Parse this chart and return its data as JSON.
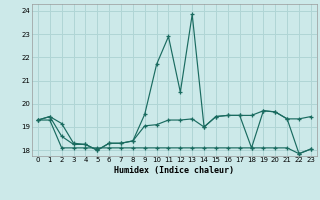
{
  "xlabel": "Humidex (Indice chaleur)",
  "background_color": "#cce9e9",
  "grid_color": "#b0d5d5",
  "line_color": "#1a6b60",
  "xlim": [
    -0.5,
    23.5
  ],
  "ylim": [
    17.75,
    24.3
  ],
  "yticks": [
    18,
    19,
    20,
    21,
    22,
    23,
    24
  ],
  "xticks": [
    0,
    1,
    2,
    3,
    4,
    5,
    6,
    7,
    8,
    9,
    10,
    11,
    12,
    13,
    14,
    15,
    16,
    17,
    18,
    19,
    20,
    21,
    22,
    23
  ],
  "series1": [
    19.3,
    19.45,
    19.15,
    18.3,
    18.25,
    18.0,
    18.3,
    18.3,
    18.4,
    19.55,
    21.7,
    22.9,
    20.5,
    23.85,
    19.0,
    19.45,
    19.5,
    19.5,
    19.5,
    19.7,
    19.65,
    19.35,
    19.35,
    19.45
  ],
  "series2": [
    19.3,
    19.45,
    18.6,
    18.25,
    18.25,
    18.0,
    18.3,
    18.3,
    18.4,
    19.05,
    19.1,
    19.3,
    19.3,
    19.35,
    19.0,
    19.45,
    19.5,
    19.5,
    18.1,
    19.7,
    19.65,
    19.35,
    17.85,
    18.05
  ],
  "series3": [
    19.3,
    19.3,
    18.1,
    18.1,
    18.1,
    18.1,
    18.1,
    18.1,
    18.1,
    18.1,
    18.1,
    18.1,
    18.1,
    18.1,
    18.1,
    18.1,
    18.1,
    18.1,
    18.1,
    18.1,
    18.1,
    18.1,
    17.85,
    18.05
  ]
}
